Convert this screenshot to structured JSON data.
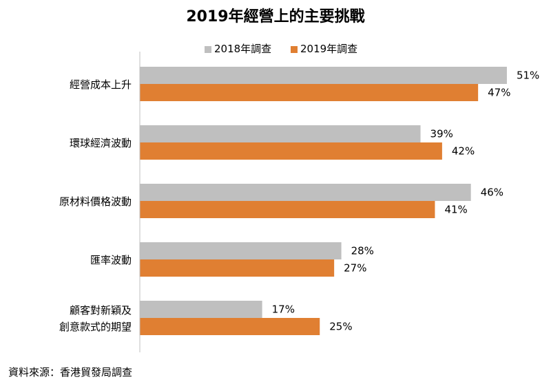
{
  "chart_data": {
    "type": "bar",
    "orientation": "horizontal",
    "title": "2019年經營上的主要挑戰",
    "categories": [
      [
        "經營成本上升"
      ],
      [
        "環球經濟波動"
      ],
      [
        "原材料價格波動"
      ],
      [
        "匯率波動"
      ],
      [
        "顧客對新穎及",
        "創意款式的期望"
      ]
    ],
    "series": [
      {
        "name": "2018年調查",
        "color": "#bfbfbf",
        "values": [
          51,
          39,
          46,
          28,
          17
        ]
      },
      {
        "name": "2019年調查",
        "color": "#e07f32",
        "values": [
          47,
          42,
          41,
          27,
          25
        ]
      }
    ],
    "value_suffix": "%",
    "xlim": [
      0,
      55
    ],
    "legend": "top",
    "grid": false
  },
  "source": "資料來源：香港貿發局調查"
}
